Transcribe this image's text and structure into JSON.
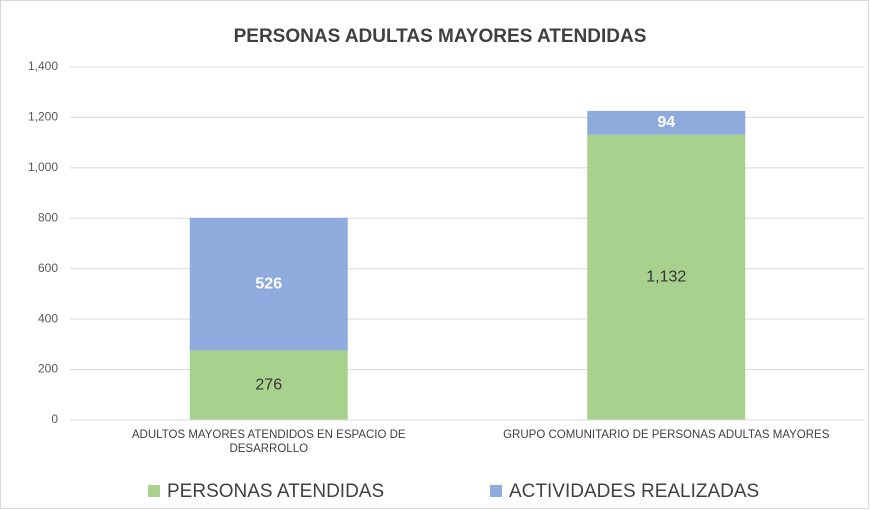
{
  "chart_data": {
    "type": "stacked_bar",
    "title": "PERSONAS ADULTAS MAYORES ATENDIDAS",
    "categories": [
      "ADULTOS MAYORES ATENDIDOS EN ESPACIO DE DESARROLLO",
      "GRUPO COMUNITARIO DE PERSONAS ADULTAS MAYORES"
    ],
    "series": [
      {
        "name": "PERSONAS ATENDIDAS",
        "color": "#a9d18e",
        "values": [
          276,
          1132
        ],
        "value_labels": [
          "276",
          "1,132"
        ],
        "label_color": "#333333"
      },
      {
        "name": "ACTIVIDADES REALIZADAS",
        "color": "#8faadc",
        "values": [
          526,
          94
        ],
        "value_labels": [
          "526",
          "94"
        ],
        "label_color": "#ffffff"
      }
    ],
    "ylim": [
      0,
      1400
    ],
    "yticks": [
      0,
      200,
      400,
      600,
      800,
      {
        "value": 1000,
        "label": "1,000"
      },
      {
        "value": 1200,
        "label": "1,200"
      },
      {
        "value": 1400,
        "label": "1,400"
      }
    ],
    "grid": true,
    "legend": "bottom"
  }
}
